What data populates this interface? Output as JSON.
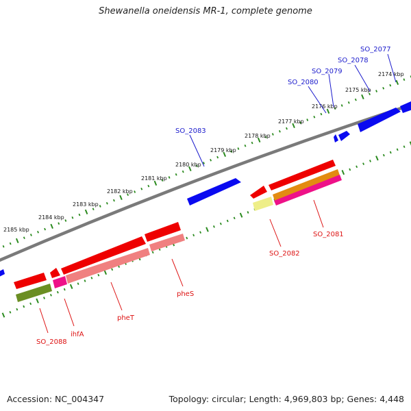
{
  "title": "Shewanella oneidensis MR-1, complete genome",
  "footer": {
    "accession": "Accession: NC_004347",
    "topology": "Topology: circular; Length: 4,969,803 bp; Genes: 4,448"
  },
  "colors": {
    "backbone": "#808080",
    "tick": "#2a8a1e",
    "forward_gene": "#0a0af0",
    "reverse_gene": "#ee0000",
    "forward_label": "#1a1acc",
    "reverse_label": "#dd1111"
  },
  "scale_labels": [
    "2174 kbp",
    "2175 kbp",
    "2176 kbp",
    "2177 kbp",
    "2178 kbp",
    "2179 kbp",
    "2180 kbp",
    "2181 kbp",
    "2182 kbp",
    "2183 kbp",
    "2184 kbp",
    "2185 kbp"
  ],
  "forward_genes": [
    {
      "id": "f1",
      "label": "SO_2077"
    },
    {
      "id": "f2",
      "label": "SO_2078"
    },
    {
      "id": "f3",
      "label": "SO_2079"
    },
    {
      "id": "f4",
      "label": "SO_2080"
    },
    {
      "id": "f5",
      "label": "SO_2083"
    }
  ],
  "reverse_genes": [
    {
      "id": "r1",
      "label": "SO_2081"
    },
    {
      "id": "r2",
      "label": "SO_2082"
    },
    {
      "id": "r3",
      "label": "pheS"
    },
    {
      "id": "r4",
      "label": "pheT"
    },
    {
      "id": "r5",
      "label": "ihfA"
    },
    {
      "id": "r6",
      "label": "SO_2088"
    }
  ]
}
